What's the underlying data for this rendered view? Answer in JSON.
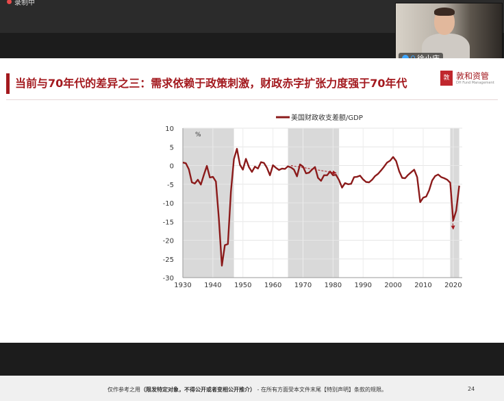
{
  "recording": {
    "label": "录制中"
  },
  "participant": {
    "name": "徐小庆"
  },
  "slide": {
    "title": "当前与70年代的差异之三：需求依赖于政策刺激，财政赤字扩张力度强于70年代",
    "logo_text": "敦和资管",
    "logo_sub": "DH Fund Management",
    "footer": {
      "prefix": "仅作参考之用",
      "bold": "（限发特定对象，不得公开或者变相公开推介）",
      "suffix": " - 在所有方面受本文件末尾【特别声明】条款的规限。",
      "page": "24"
    }
  },
  "colors": {
    "accent": "#a3191e",
    "line": "#8b1a1a",
    "shade": "#d9d9d9"
  },
  "chart_data": {
    "type": "line",
    "series": [
      {
        "name": "美国财政收支差额/GDP",
        "x": [
          1930,
          1931,
          1932,
          1933,
          1934,
          1935,
          1936,
          1937,
          1938,
          1939,
          1940,
          1941,
          1942,
          1943,
          1944,
          1945,
          1946,
          1947,
          1948,
          1949,
          1950,
          1951,
          1952,
          1953,
          1954,
          1955,
          1956,
          1957,
          1958,
          1959,
          1960,
          1961,
          1962,
          1963,
          1964,
          1965,
          1966,
          1967,
          1968,
          1969,
          1970,
          1971,
          1972,
          1973,
          1974,
          1975,
          1976,
          1977,
          1978,
          1979,
          1980,
          1981,
          1982,
          1983,
          1984,
          1985,
          1986,
          1987,
          1988,
          1989,
          1990,
          1991,
          1992,
          1993,
          1994,
          1995,
          1996,
          1997,
          1998,
          1999,
          2000,
          2001,
          2002,
          2003,
          2004,
          2005,
          2006,
          2007,
          2008,
          2009,
          2010,
          2011,
          2012,
          2013,
          2014,
          2015,
          2016,
          2017,
          2018,
          2019,
          2020,
          2021,
          2022
        ],
        "y": [
          0.8,
          0.6,
          -1.0,
          -4.5,
          -4.8,
          -3.8,
          -5.1,
          -2.5,
          -0.1,
          -3.2,
          -3.0,
          -4.3,
          -14.2,
          -26.8,
          -21.3,
          -21.0,
          -7.0,
          1.7,
          4.5,
          0.2,
          -1.1,
          1.8,
          -0.4,
          -1.7,
          -0.3,
          -0.8,
          0.9,
          0.7,
          -0.6,
          -2.6,
          0.1,
          -0.6,
          -1.2,
          -0.8,
          -0.9,
          -0.2,
          -0.5,
          -1.1,
          -2.9,
          0.3,
          -0.3,
          -2.1,
          -1.9,
          -1.1,
          -0.4,
          -3.3,
          -4.1,
          -2.6,
          -2.6,
          -1.6,
          -2.6,
          -2.5,
          -3.9,
          -5.9,
          -4.7,
          -5.0,
          -4.9,
          -3.1,
          -3.0,
          -2.7,
          -3.7,
          -4.4,
          -4.5,
          -3.8,
          -2.8,
          -2.2,
          -1.3,
          -0.3,
          0.8,
          1.3,
          2.3,
          1.2,
          -1.5,
          -3.3,
          -3.4,
          -2.5,
          -1.8,
          -1.1,
          -3.1,
          -9.8,
          -8.6,
          -8.3,
          -6.6,
          -4.0,
          -2.8,
          -2.4,
          -3.1,
          -3.4,
          -3.8,
          -4.6,
          -14.7,
          -12.1,
          -5.4
        ]
      }
    ],
    "xticks": [
      "1930",
      "1940",
      "1950",
      "1960",
      "1970",
      "1980",
      "1990",
      "2000",
      "2010",
      "2020"
    ],
    "yticks": [
      "10",
      "5",
      "0",
      "-5",
      "-10",
      "-15",
      "-20",
      "-25",
      "-30"
    ],
    "ylim": [
      -30,
      10
    ],
    "xlim": [
      1930,
      2023
    ],
    "unit": "%",
    "shaded_periods": [
      [
        1930,
        1947
      ],
      [
        1965,
        1982
      ],
      [
        2019,
        2022
      ]
    ],
    "trend_arrows": [
      {
        "from": [
          1966,
          0
        ],
        "to": [
          1981,
          -2
        ]
      },
      {
        "from": [
          2019,
          -4.5
        ],
        "to": [
          2020,
          -17
        ]
      }
    ],
    "grid": true,
    "legend": "top"
  }
}
